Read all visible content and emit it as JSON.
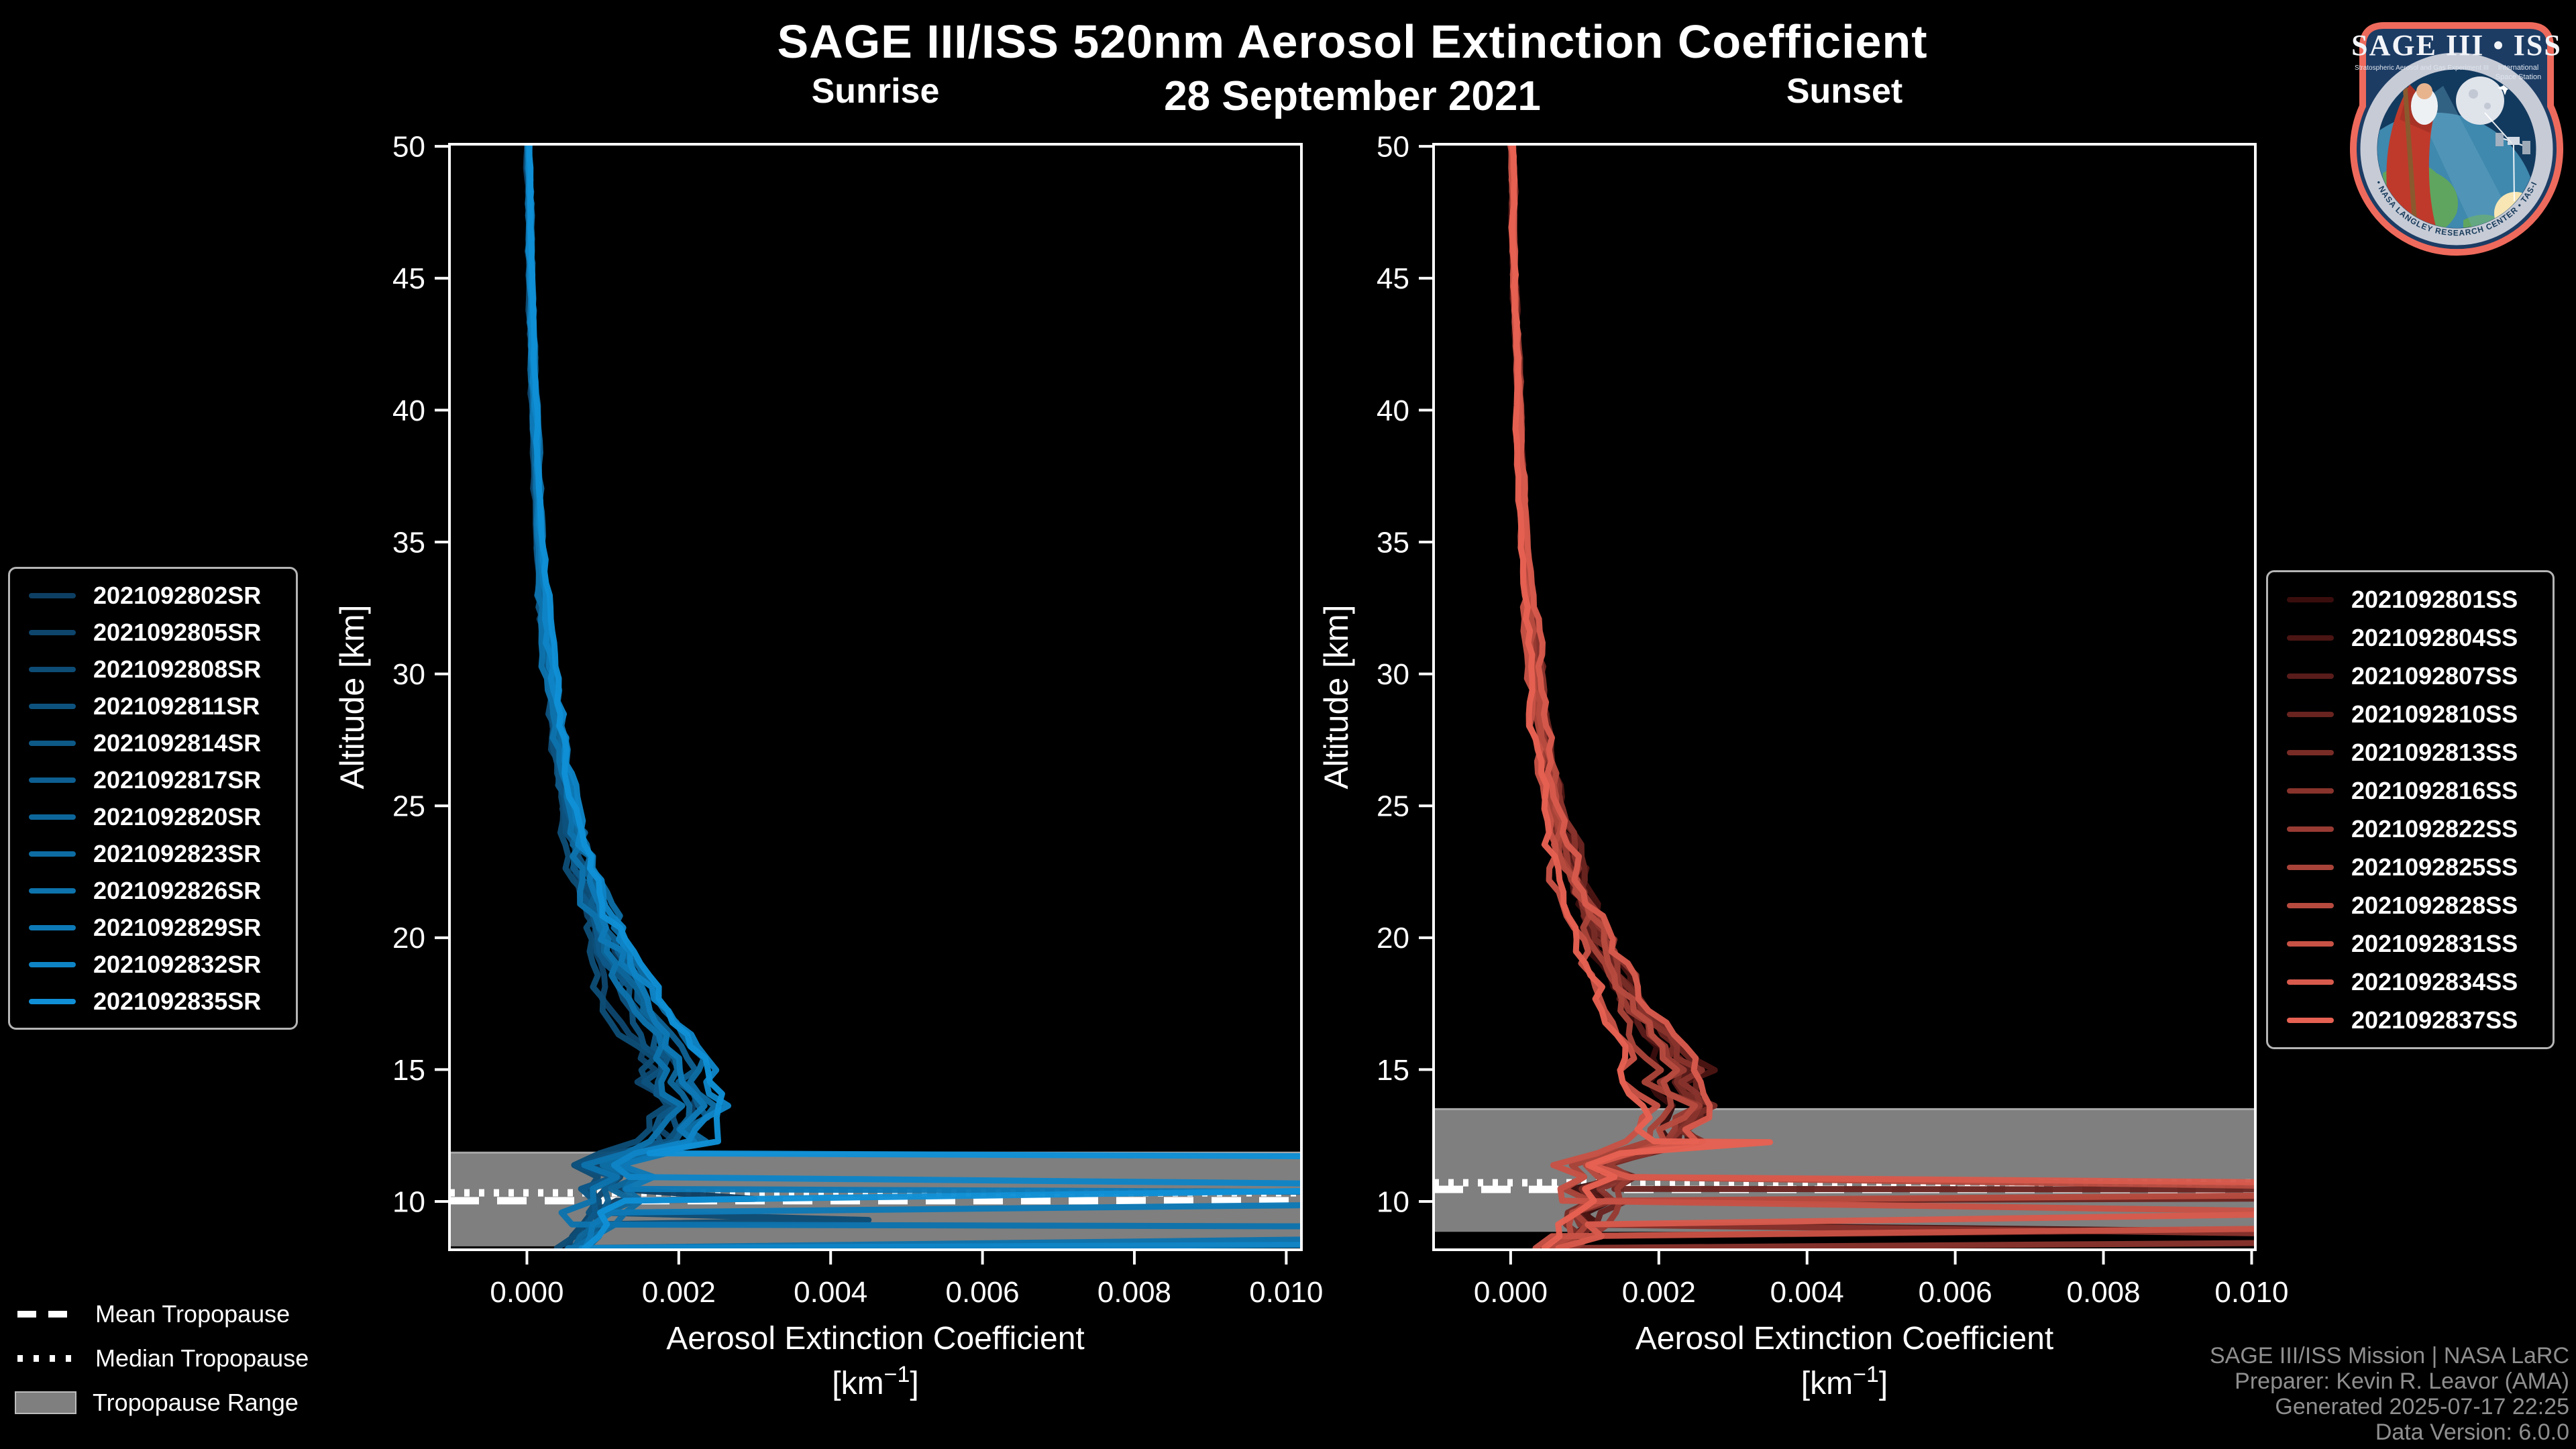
{
  "header": {
    "title": "SAGE III/ISS 520nm Aerosol Extinction Coefficient",
    "date": "28 September 2021"
  },
  "axes": {
    "xlabel": "Aerosol Extinction Coefficient",
    "unit_base": "[km",
    "unit_sup": "−1",
    "unit_close": "]",
    "ylabel": "Altitude [km]",
    "x_tick_labels": [
      "0.000",
      "0.002",
      "0.004",
      "0.006",
      "0.008",
      "0.010"
    ],
    "x_tick_values": [
      0.0,
      0.002,
      0.004,
      0.006,
      0.008,
      0.01
    ],
    "y_tick_values": [
      50,
      45,
      40,
      35,
      30,
      25,
      20,
      15,
      10
    ],
    "ylim": [
      8.17,
      50.08
    ],
    "grid": false,
    "spine_color": "#ffffff",
    "background_color": "#000000"
  },
  "chart_data": [
    {
      "type": "line",
      "title": "Sunrise",
      "xlabel": "Aerosol Extinction Coefficient [km^-1]",
      "ylabel": "Altitude [km]",
      "xlim": [
        -0.00102,
        0.0102
      ],
      "ylim": [
        8.17,
        50.08
      ],
      "legend_position": "outside-left",
      "series": [
        {
          "label": "2021092802SR",
          "color": "#0d3f63"
        },
        {
          "label": "2021092805SR",
          "color": "#0d456c"
        },
        {
          "label": "2021092808SR",
          "color": "#0d4c75"
        },
        {
          "label": "2021092811SR",
          "color": "#0d527e"
        },
        {
          "label": "2021092814SR",
          "color": "#0d5988"
        },
        {
          "label": "2021092817SR",
          "color": "#0d5f91"
        },
        {
          "label": "2021092820SR",
          "color": "#0d669a"
        },
        {
          "label": "2021092823SR",
          "color": "#0d6ca3"
        },
        {
          "label": "2021092826SR",
          "color": "#0d73ac"
        },
        {
          "label": "2021092829SR",
          "color": "#0d79b6"
        },
        {
          "label": "2021092832SR",
          "color": "#0e84c6"
        },
        {
          "label": "2021092835SR",
          "color": "#108fd6"
        }
      ],
      "base_profile_km_ext": [
        [
          50,
          2e-05
        ],
        [
          46,
          4e-05
        ],
        [
          42,
          7e-05
        ],
        [
          38,
          0.00012
        ],
        [
          35,
          0.00016
        ],
        [
          32,
          0.00022
        ],
        [
          30,
          0.0003
        ],
        [
          28,
          0.00036
        ],
        [
          26,
          0.00046
        ],
        [
          24,
          0.0006
        ],
        [
          22,
          0.00078
        ],
        [
          20,
          0.001
        ],
        [
          18,
          0.00132
        ],
        [
          17,
          0.0015
        ],
        [
          16,
          0.00172
        ],
        [
          15,
          0.0019
        ],
        [
          14.4,
          0.00175
        ],
        [
          13.9,
          0.00205
        ],
        [
          13.4,
          0.00215
        ],
        [
          12.9,
          0.00175
        ],
        [
          12.4,
          0.00205
        ],
        [
          11.9,
          0.00145
        ],
        [
          11.4,
          0.00095
        ],
        [
          10.9,
          0.00125
        ],
        [
          10.4,
          0.00085
        ],
        [
          9.9,
          0.00115
        ],
        [
          9.4,
          0.0007
        ],
        [
          8.9,
          0.00095
        ],
        [
          8.5,
          0.0006
        ],
        [
          8.2,
          0.00055
        ]
      ],
      "excursions": [
        {
          "series": 11,
          "type": "offscale",
          "exit_km": 11.7,
          "return_km": 10.45
        },
        {
          "series": 10,
          "type": "offscale",
          "exit_km": 10.65,
          "return_km": 8.37
        },
        {
          "series": 9,
          "type": "offscale",
          "exit_km": 10.35,
          "return_km": 9.9
        },
        {
          "series": 8,
          "type": "offscale",
          "exit_km": 9.05,
          "return_km": 8.6
        },
        {
          "series": 2,
          "type": "spike",
          "alt_km": 9.3,
          "x_peak": 0.0045
        },
        {
          "series": 0,
          "type": "spike",
          "alt_km": 10.1,
          "x_peak": 0.003
        }
      ],
      "tropopause": {
        "mean_km": 10.03,
        "median_km": 10.33,
        "range_km": [
          8.3,
          11.85
        ]
      }
    },
    {
      "type": "line",
      "title": "Sunset",
      "xlabel": "Aerosol Extinction Coefficient [km^-1]",
      "ylabel": "Altitude [km]",
      "xlim": [
        -0.00104,
        0.01005
      ],
      "ylim": [
        8.17,
        50.08
      ],
      "legend_position": "outside-right",
      "series": [
        {
          "label": "2021092801SS",
          "color": "#3a0d0d"
        },
        {
          "label": "2021092804SS",
          "color": "#4a1513"
        },
        {
          "label": "2021092807SS",
          "color": "#591c1a"
        },
        {
          "label": "2021092810SS",
          "color": "#692420"
        },
        {
          "label": "2021092813SS",
          "color": "#792c26"
        },
        {
          "label": "2021092816SS",
          "color": "#88332c"
        },
        {
          "label": "2021092822SS",
          "color": "#983b33"
        },
        {
          "label": "2021092825SS",
          "color": "#a84339"
        },
        {
          "label": "2021092828SS",
          "color": "#b74a3f"
        },
        {
          "label": "2021092831SS",
          "color": "#c75245"
        },
        {
          "label": "2021092834SS",
          "color": "#d75a4c"
        },
        {
          "label": "2021092837SS",
          "color": "#e66152"
        }
      ],
      "base_profile_km_ext": [
        [
          50,
          2e-05
        ],
        [
          46,
          4e-05
        ],
        [
          42,
          8e-05
        ],
        [
          38,
          0.00013
        ],
        [
          35,
          0.00017
        ],
        [
          32,
          0.00024
        ],
        [
          30,
          0.00032
        ],
        [
          28,
          0.00038
        ],
        [
          26,
          0.00048
        ],
        [
          24,
          0.00062
        ],
        [
          22,
          0.0008
        ],
        [
          20,
          0.00102
        ],
        [
          18,
          0.00135
        ],
        [
          17,
          0.00152
        ],
        [
          16,
          0.00175
        ],
        [
          15,
          0.00195
        ],
        [
          14.4,
          0.0018
        ],
        [
          13.9,
          0.0021
        ],
        [
          13.4,
          0.0022
        ],
        [
          12.9,
          0.0018
        ],
        [
          12.4,
          0.0021
        ],
        [
          11.9,
          0.0015
        ],
        [
          11.4,
          0.001
        ],
        [
          10.9,
          0.0013
        ],
        [
          10.4,
          0.0009
        ],
        [
          9.9,
          0.0012
        ],
        [
          9.4,
          0.00075
        ],
        [
          8.9,
          0.001
        ],
        [
          8.5,
          0.00065
        ],
        [
          8.2,
          0.00055
        ]
      ],
      "excursions": [
        {
          "series": 11,
          "type": "spike",
          "alt_km": 12.25,
          "x_peak": 0.0035
        },
        {
          "series": 10,
          "type": "offscale",
          "exit_km": 10.7,
          "return_km": 9.55
        },
        {
          "series": 9,
          "type": "offscale",
          "exit_km": 9.6,
          "return_km": 9.0
        },
        {
          "series": 8,
          "type": "offscale",
          "exit_km": 10.55,
          "return_km": 10.25
        },
        {
          "series": 3,
          "type": "offscale",
          "exit_km": 10.45,
          "return_km": 10.12
        },
        {
          "series": 5,
          "type": "offscale",
          "exit_km": 8.75,
          "return_km": 8.45
        },
        {
          "series": 1,
          "type": "spike",
          "alt_km": 8.9,
          "x_peak": 0.009
        }
      ],
      "tropopause": {
        "mean_km": 10.46,
        "median_km": 10.71,
        "range_km": [
          8.85,
          13.5
        ]
      }
    }
  ],
  "tropopause_legend": {
    "mean": "Mean Tropopause",
    "median": "Median Tropopause",
    "range": "Tropopause Range"
  },
  "style_colors": {
    "tropopause_band": "#7f7f7f",
    "tropopause_band_edge": "#a8a8a8",
    "tropopause_lines": "#ffffff",
    "footer_text": "#8f8f8f"
  },
  "footer": {
    "lines": [
      "SAGE III/ISS Mission | NASA LaRC",
      "Preparer: Kevin R. Leavor (AMA)",
      "Generated 2025-07-17 22:25",
      "Data Version: 6.0.0"
    ]
  },
  "logo": {
    "title": "SAGE III • ISS",
    "subtitle_left": "Stratospheric Aerosol and Gas Experiment III",
    "subtitle_right_1": "International",
    "subtitle_right_2": "Space Station",
    "ring_text": "BALL • NASA LANGLEY RESEARCH CENTER • TAS-I • ESA",
    "border_color": "#ee6a5c",
    "field_color": "#1c3c64",
    "ring_color": "#c6cbd6"
  }
}
